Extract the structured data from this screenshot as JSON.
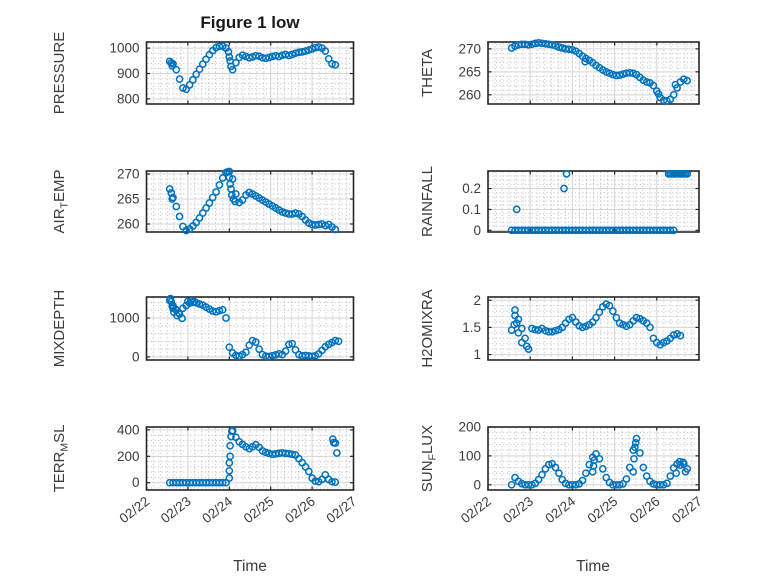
{
  "title": "Figure 1 low",
  "xlabel": "Time",
  "colors": {
    "marker": "#0072BD",
    "axis": "#262626",
    "text": "#3c3c3c",
    "major_grid": "#d4d4d4",
    "minor_grid": "#b9b9b9",
    "background": "#ffffff"
  },
  "x_ticks": {
    "positions": [
      0,
      1,
      2,
      3,
      4,
      5
    ],
    "labels": [
      "02/22",
      "02/23",
      "02/24",
      "02/25",
      "02/26",
      "02/27"
    ]
  },
  "chart_data": [
    {
      "type": "scatter",
      "name": "PRESSURE",
      "ylabel_parts": [
        [
          "PRESSURE",
          0
        ]
      ],
      "yticks": [
        800,
        900,
        1000
      ],
      "ylim": [
        780,
        1024
      ],
      "xlim": [
        0,
        5
      ],
      "t0": 0.56,
      "dt": 0.08,
      "values": [
        948,
        938,
        915,
        878,
        843,
        838,
        855,
        875,
        897,
        917,
        937,
        956,
        974,
        990,
        1002,
        1007,
        1008,
        1000,
        965,
        915,
        942,
        963,
        972,
        967,
        962,
        965,
        970,
        968,
        962,
        960,
        963,
        967,
        970,
        967,
        972,
        975,
        971,
        975,
        980,
        983,
        985,
        988,
        992,
        997,
        1002,
        1004,
        1000,
        988,
        958,
        938,
        934,
        null,
        null
      ],
      "extra_points": [
        [
          0.6,
          942
        ],
        [
          0.62,
          930
        ],
        [
          1.98,
          985
        ],
        [
          2.02,
          950
        ],
        [
          2.04,
          928
        ]
      ]
    },
    {
      "type": "scatter",
      "name": "THETA",
      "ylabel_parts": [
        [
          "THETA",
          0
        ]
      ],
      "yticks": [
        260,
        265,
        270
      ],
      "ylim": [
        258,
        271.5
      ],
      "xlim": [
        0,
        5
      ],
      "t0": 0.56,
      "dt": 0.08,
      "values": [
        270.2,
        270.6,
        270.9,
        271.0,
        271.0,
        270.9,
        271.0,
        271.2,
        271.3,
        271.2,
        271.1,
        271.0,
        270.9,
        270.7,
        270.4,
        270.2,
        270.0,
        269.9,
        269.8,
        269.5,
        269.0,
        268.4,
        267.9,
        267.5,
        267.0,
        266.4,
        265.9,
        265.4,
        265.0,
        264.7,
        264.4,
        264.2,
        264.3,
        264.5,
        264.7,
        264.8,
        264.7,
        264.4,
        263.8,
        263.2,
        262.8,
        262.6,
        262.0,
        260.8,
        259.4,
        258.8,
        258.7,
        259.0,
        260.0,
        261.5,
        262.8,
        263.4,
        263.1
      ],
      "extra_points": [
        [
          2.3,
          267.2
        ],
        [
          4.04,
          260.2
        ],
        [
          4.44,
          262.2
        ]
      ]
    },
    {
      "type": "scatter",
      "name": "AIR_TEMP",
      "ylabel_parts": [
        [
          "AIR",
          0
        ],
        [
          "T",
          1
        ],
        [
          "EMP",
          0
        ]
      ],
      "yticks": [
        260,
        265,
        270
      ],
      "ylim": [
        258.4,
        270.6
      ],
      "xlim": [
        0,
        5
      ],
      "t0": 0.56,
      "dt": 0.08,
      "values": [
        267.0,
        265.3,
        263.5,
        261.5,
        259.5,
        258.7,
        259.0,
        259.6,
        260.3,
        261.2,
        262.2,
        263.2,
        264.2,
        265.3,
        266.4,
        267.8,
        269.2,
        270.3,
        270.5,
        269.0,
        266.0,
        264.3,
        264.8,
        265.8,
        266.3,
        266.0,
        265.6,
        265.2,
        264.8,
        264.4,
        264.0,
        263.6,
        263.2,
        262.8,
        262.4,
        262.2,
        262.0,
        262.0,
        262.2,
        262.0,
        261.5,
        260.8,
        260.2,
        259.9,
        259.8,
        259.9,
        260.0,
        259.7,
        259.9,
        259.4,
        258.9,
        null,
        null
      ],
      "extra_points": [
        [
          0.6,
          266.2
        ],
        [
          0.62,
          265.0
        ],
        [
          1.96,
          270.4
        ],
        [
          2.0,
          269.3
        ],
        [
          2.02,
          268.0
        ],
        [
          2.04,
          267.0
        ],
        [
          2.06,
          265.8
        ],
        [
          2.1,
          265.0
        ],
        [
          2.14,
          264.5
        ]
      ]
    },
    {
      "type": "scatter",
      "name": "RAINFALL",
      "ylabel_parts": [
        [
          "RAINFALL",
          0
        ]
      ],
      "yticks": [
        0,
        0.1,
        0.2
      ],
      "ylim": [
        -0.008,
        0.284
      ],
      "xlim": [
        0,
        5
      ],
      "t0": 0.56,
      "dt": 0.08,
      "values": [
        0,
        0,
        0,
        0,
        0,
        0,
        0,
        0,
        0,
        0,
        0,
        0,
        0,
        0,
        0,
        0,
        0,
        0,
        0,
        0,
        0,
        0,
        0,
        0,
        0,
        0,
        0,
        0,
        0,
        0,
        0,
        0,
        0,
        0,
        0,
        0,
        0,
        0,
        0,
        0,
        0,
        0,
        0,
        0,
        0,
        0,
        0,
        0,
        0,
        null,
        null,
        null,
        null
      ],
      "extra_points": [
        [
          0.68,
          0.1
        ],
        [
          1.8,
          0.2
        ],
        [
          1.86,
          0.27
        ],
        [
          4.28,
          0.27
        ],
        [
          4.32,
          0.27
        ],
        [
          4.36,
          0.27
        ],
        [
          4.4,
          0.27
        ],
        [
          4.44,
          0.27
        ],
        [
          4.48,
          0.27
        ],
        [
          4.52,
          0.27
        ],
        [
          4.56,
          0.27
        ],
        [
          4.6,
          0.27
        ],
        [
          4.64,
          0.27
        ],
        [
          4.68,
          0.27
        ],
        [
          4.72,
          0.27
        ]
      ]
    },
    {
      "type": "scatter",
      "name": "MIXDEPTH",
      "ylabel_parts": [
        [
          "MIXDEPTH",
          0
        ]
      ],
      "yticks": [
        0,
        1000
      ],
      "ylim": [
        -80,
        1540
      ],
      "xlim": [
        0,
        5
      ],
      "t0": 0.56,
      "dt": 0.08,
      "values": [
        1450,
        1320,
        1200,
        1100,
        1250,
        1320,
        1380,
        1400,
        1390,
        1360,
        1330,
        1280,
        1230,
        1180,
        1160,
        1190,
        1210,
        1000,
        250,
        100,
        40,
        20,
        60,
        120,
        300,
        420,
        380,
        200,
        60,
        20,
        10,
        30,
        50,
        80,
        60,
        150,
        320,
        340,
        180,
        60,
        25,
        35,
        25,
        15,
        30,
        80,
        170,
        260,
        320,
        370,
        420,
        400,
        null
      ],
      "extra_points": [
        [
          0.58,
          1500
        ],
        [
          0.6,
          1420
        ],
        [
          0.62,
          1300
        ],
        [
          0.64,
          1250
        ],
        [
          0.66,
          1150
        ],
        [
          0.7,
          1230
        ],
        [
          0.74,
          1060
        ],
        [
          0.78,
          1130
        ],
        [
          0.86,
          990
        ],
        [
          1.0,
          1430
        ],
        [
          1.08,
          1440
        ],
        [
          1.16,
          1420
        ]
      ]
    },
    {
      "type": "scatter",
      "name": "H2OMIXRA",
      "ylabel_parts": [
        [
          "H2OMIXRA",
          0
        ]
      ],
      "yticks": [
        1,
        1.5,
        2
      ],
      "ylim": [
        0.9,
        2.06
      ],
      "xlim": [
        0,
        5
      ],
      "t0": 0.56,
      "dt": 0.08,
      "values": [
        1.45,
        1.82,
        1.65,
        1.48,
        1.3,
        1.1,
        1.48,
        1.46,
        1.45,
        1.48,
        1.44,
        1.42,
        1.42,
        1.44,
        1.46,
        1.5,
        1.58,
        1.65,
        1.68,
        1.6,
        1.53,
        1.5,
        1.52,
        1.55,
        1.6,
        1.68,
        1.78,
        1.88,
        1.93,
        1.9,
        1.8,
        1.68,
        1.58,
        1.55,
        1.52,
        1.55,
        1.62,
        1.68,
        1.66,
        1.62,
        1.58,
        1.5,
        1.3,
        1.22,
        1.18,
        1.22,
        1.25,
        1.3,
        1.36,
        1.38,
        1.35,
        null,
        null
      ],
      "extra_points": [
        [
          0.62,
          1.55
        ],
        [
          0.64,
          1.72
        ],
        [
          0.68,
          1.58
        ],
        [
          0.72,
          1.4
        ],
        [
          0.8,
          1.22
        ],
        [
          0.92,
          1.15
        ]
      ]
    },
    {
      "type": "scatter",
      "name": "TERR_MSL",
      "ylabel_parts": [
        [
          "TERR",
          0
        ],
        [
          "M",
          1
        ],
        [
          "SL",
          0
        ]
      ],
      "yticks": [
        0,
        200,
        400
      ],
      "ylim": [
        -55,
        422
      ],
      "xlim": [
        0,
        5
      ],
      "t0": 0.56,
      "dt": 0.08,
      "values": [
        0,
        0,
        0,
        0,
        0,
        0,
        0,
        0,
        0,
        0,
        0,
        0,
        0,
        0,
        0,
        0,
        0,
        0,
        150,
        395,
        345,
        310,
        290,
        272,
        258,
        272,
        288,
        268,
        242,
        230,
        222,
        215,
        218,
        222,
        226,
        222,
        220,
        215,
        210,
        182,
        152,
        120,
        85,
        35,
        12,
        8,
        25,
        60,
        25,
        8,
        5,
        null,
        null
      ],
      "extra_points": [
        [
          2.0,
          35
        ],
        [
          2.0,
          90
        ],
        [
          2.02,
          200
        ],
        [
          2.02,
          280
        ],
        [
          2.04,
          350
        ],
        [
          2.06,
          390
        ],
        [
          4.5,
          330
        ],
        [
          4.52,
          305
        ],
        [
          4.56,
          300
        ],
        [
          4.6,
          225
        ]
      ]
    },
    {
      "type": "scatter",
      "name": "SUN_FLUX",
      "ylabel_parts": [
        [
          "SUN",
          0
        ],
        [
          "F",
          1
        ],
        [
          "LUX",
          0
        ]
      ],
      "yticks": [
        0,
        100,
        200
      ],
      "ylim": [
        -18,
        200
      ],
      "xlim": [
        0,
        5
      ],
      "t0": 0.56,
      "dt": 0.08,
      "values": [
        0,
        25,
        12,
        4,
        0,
        0,
        0,
        5,
        18,
        35,
        55,
        70,
        73,
        60,
        40,
        18,
        5,
        0,
        0,
        0,
        3,
        15,
        40,
        70,
        95,
        107,
        90,
        55,
        25,
        8,
        0,
        0,
        0,
        3,
        20,
        60,
        120,
        160,
        110,
        60,
        30,
        12,
        3,
        0,
        0,
        0,
        5,
        30,
        58,
        72,
        68,
        72,
        55
      ],
      "extra_points": [
        [
          2.48,
          45
        ],
        [
          2.5,
          65
        ],
        [
          2.52,
          85
        ],
        [
          3.44,
          45
        ],
        [
          3.46,
          90
        ],
        [
          3.48,
          130
        ],
        [
          3.5,
          145
        ],
        [
          4.46,
          40
        ],
        [
          4.54,
          80
        ],
        [
          4.62,
          78
        ],
        [
          4.68,
          45
        ]
      ]
    }
  ]
}
